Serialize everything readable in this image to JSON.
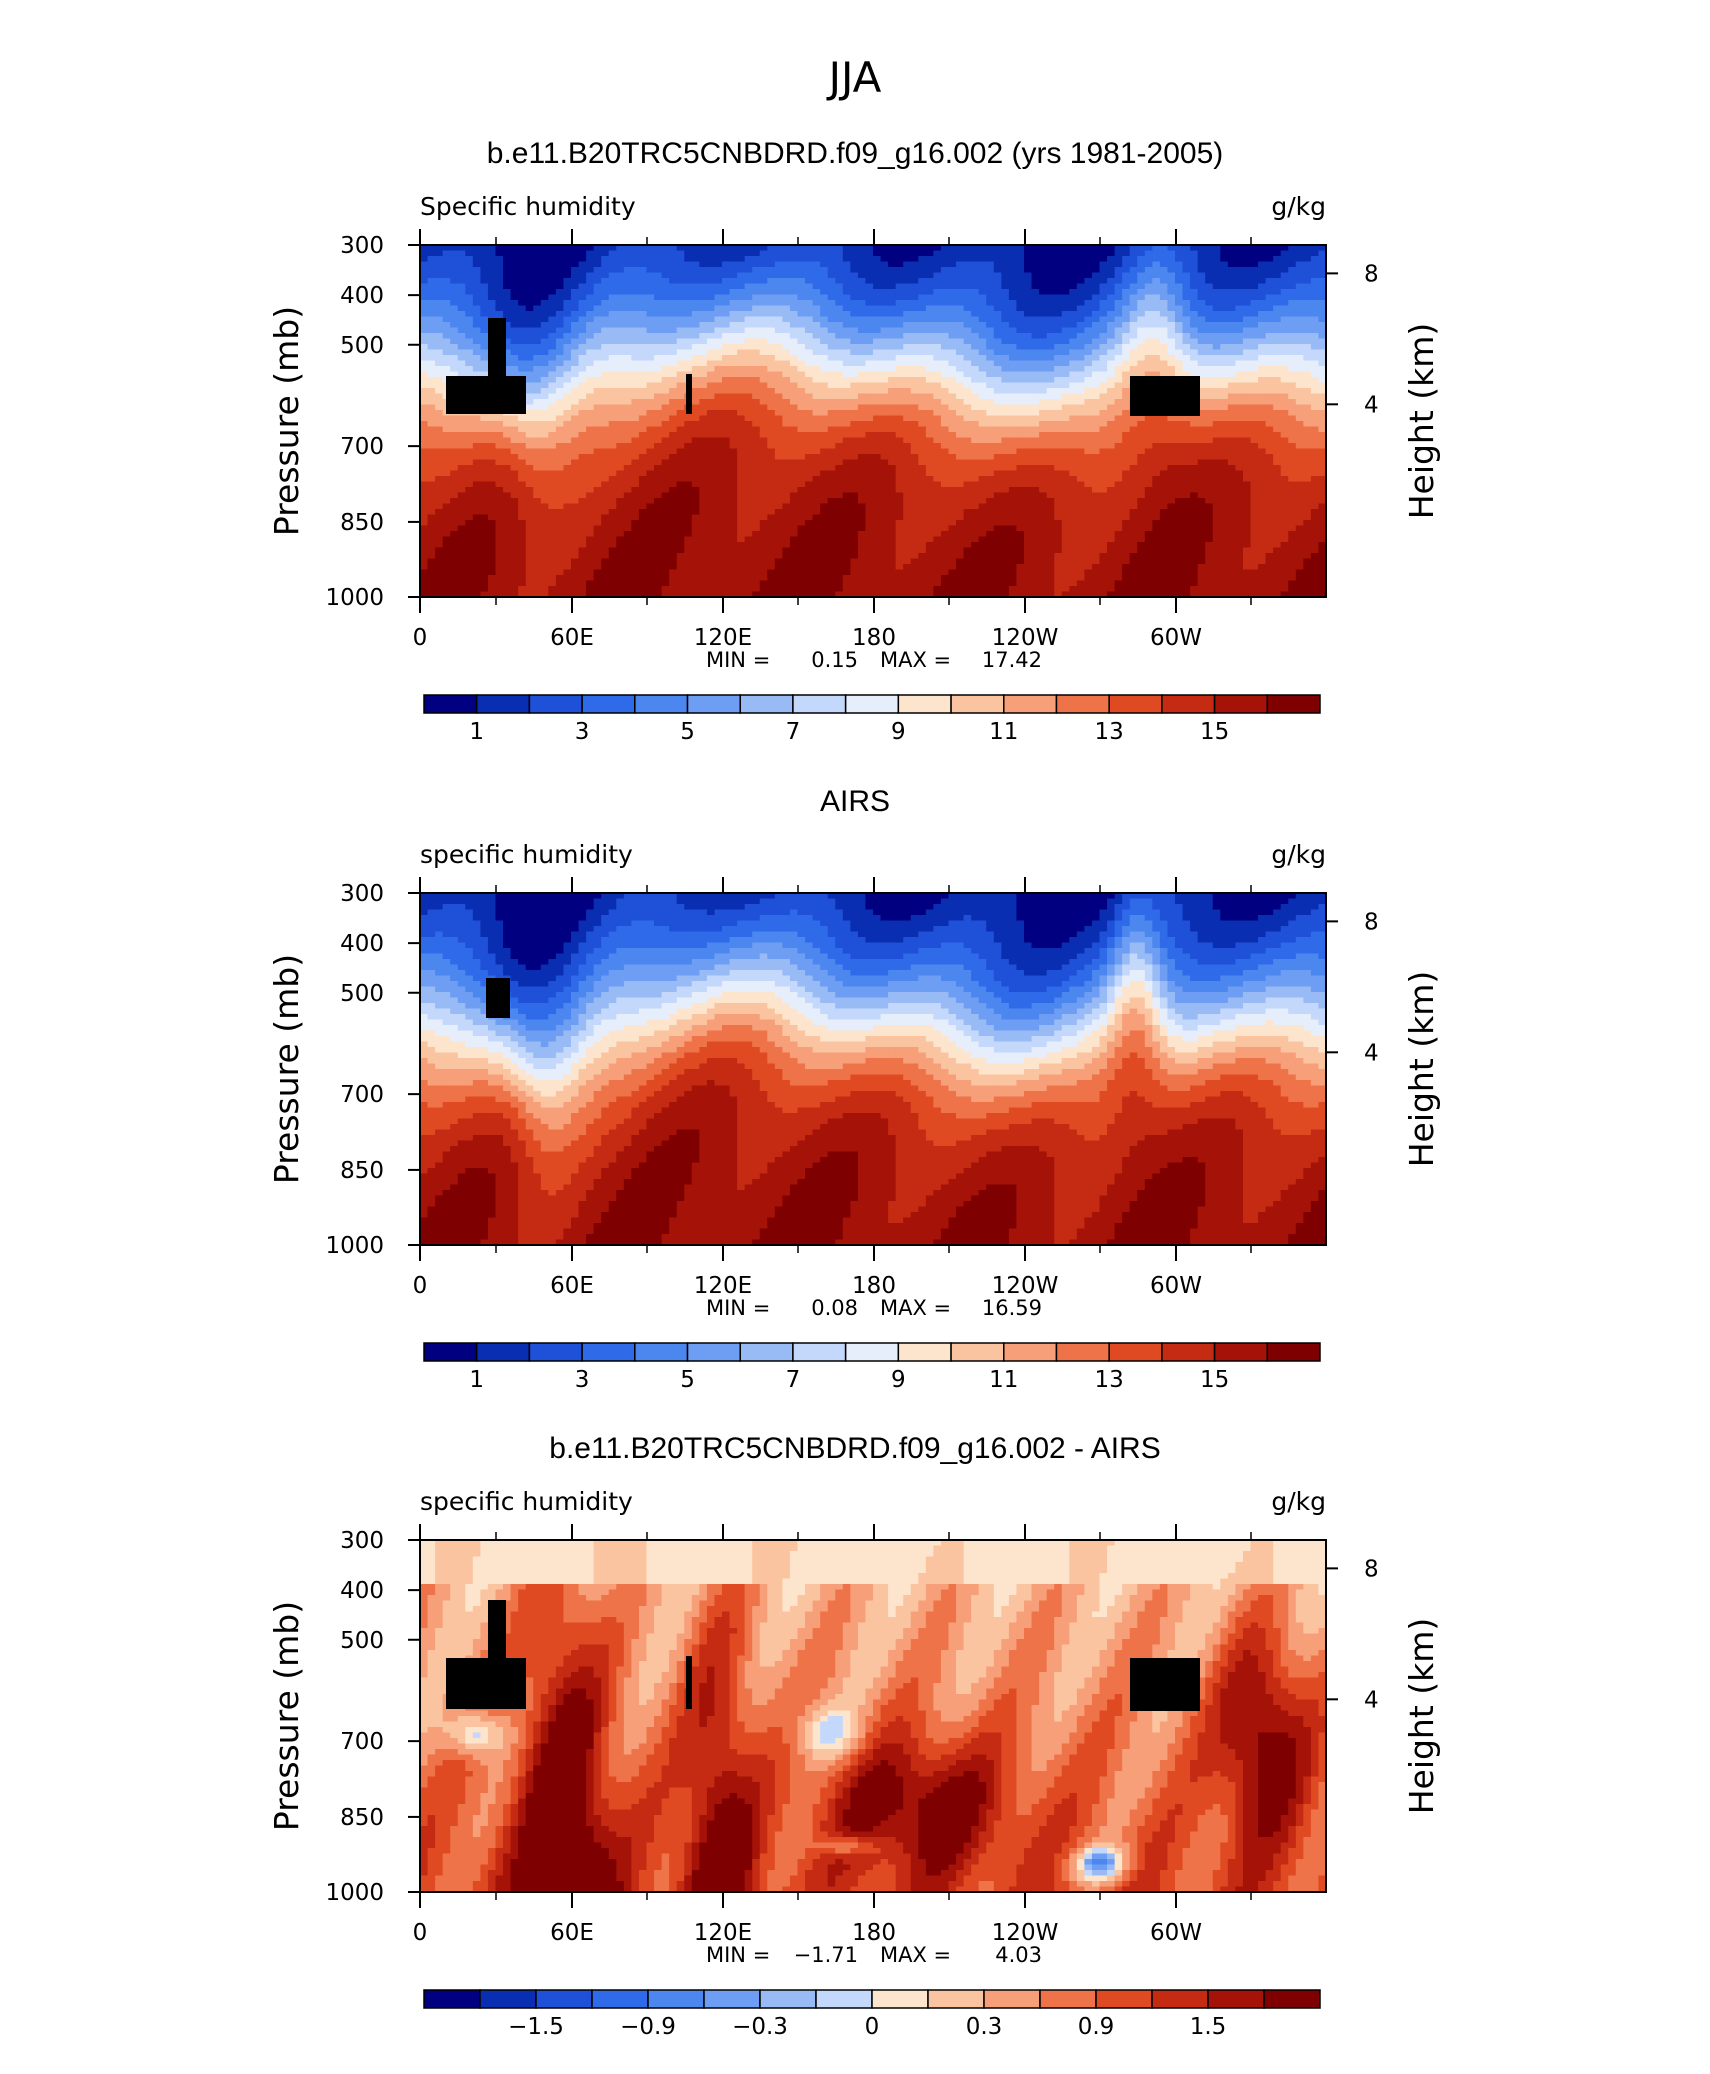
{
  "page_title": "JJA",
  "chart_data": [
    {
      "type": "heatmap",
      "title": "b.e11.B20TRC5CNBDRD.f09_g16.002 (yrs 1981-2005)",
      "left_label": "Specific humidity",
      "right_label": "g/kg",
      "ylabel": "Pressure (mb)",
      "y2label": "Height (km)",
      "x_ticks": [
        "0",
        "60E",
        "120E",
        "180",
        "120W",
        "60W"
      ],
      "y_ticks": [
        "300",
        "400",
        "500",
        "700",
        "850",
        "1000"
      ],
      "y2_ticks": [
        "8",
        "4"
      ],
      "stats": {
        "min_label": "MIN =",
        "min": "0.15",
        "max_label": "MAX =",
        "max": "17.42"
      },
      "colorbar_labels": [
        "1",
        "3",
        "5",
        "7",
        "9",
        "11",
        "13",
        "15"
      ],
      "colors": [
        "#000080",
        "#0a2eb2",
        "#1e50d8",
        "#2f6ae9",
        "#4c86ef",
        "#6e9ef3",
        "#98bbf6",
        "#c3d8fa",
        "#e6eefc",
        "#fde4cc",
        "#fbc4a0",
        "#f69f78",
        "#ef7348",
        "#e04a22",
        "#c52a12",
        "#a41208",
        "#7f0000"
      ],
      "surface_type": "mean",
      "terrain": true
    },
    {
      "type": "heatmap",
      "title": "AIRS",
      "left_label": "specific humidity",
      "right_label": "g/kg",
      "ylabel": "Pressure (mb)",
      "y2label": "Height (km)",
      "x_ticks": [
        "0",
        "60E",
        "120E",
        "180",
        "120W",
        "60W"
      ],
      "y_ticks": [
        "300",
        "400",
        "500",
        "700",
        "850",
        "1000"
      ],
      "y2_ticks": [
        "8",
        "4"
      ],
      "stats": {
        "min_label": "MIN =",
        "min": "0.08",
        "max_label": "MAX =",
        "max": "16.59"
      },
      "colorbar_labels": [
        "1",
        "3",
        "5",
        "7",
        "9",
        "11",
        "13",
        "15"
      ],
      "colors": [
        "#000080",
        "#0a2eb2",
        "#1e50d8",
        "#2f6ae9",
        "#4c86ef",
        "#6e9ef3",
        "#98bbf6",
        "#c3d8fa",
        "#e6eefc",
        "#fde4cc",
        "#fbc4a0",
        "#f69f78",
        "#ef7348",
        "#e04a22",
        "#c52a12",
        "#a41208",
        "#7f0000"
      ],
      "surface_type": "mean",
      "terrain": false
    },
    {
      "type": "heatmap",
      "title": "b.e11.B20TRC5CNBDRD.f09_g16.002 - AIRS",
      "left_label": "specific humidity",
      "right_label": "g/kg",
      "ylabel": "Pressure (mb)",
      "y2label": "Height (km)",
      "x_ticks": [
        "0",
        "60E",
        "120E",
        "180",
        "120W",
        "60W"
      ],
      "y_ticks": [
        "300",
        "400",
        "500",
        "700",
        "850",
        "1000"
      ],
      "y2_ticks": [
        "8",
        "4"
      ],
      "stats": {
        "min_label": "MIN =",
        "min": "−1.71",
        "max_label": "MAX =",
        "max": "4.03"
      },
      "colorbar_labels": [
        "−1.5",
        "−0.9",
        "−0.3",
        "0",
        "0.3",
        "0.9",
        "1.5"
      ],
      "colors": [
        "#000080",
        "#0a2eb2",
        "#1e50d8",
        "#2f6ae9",
        "#4c86ef",
        "#6e9ef3",
        "#98bbf6",
        "#c3d8fa",
        "#fde4cc",
        "#fbc4a0",
        "#f69f78",
        "#ef7348",
        "#e04a22",
        "#c52a12",
        "#a41208",
        "#7f0000"
      ],
      "surface_type": "diff",
      "terrain": true
    }
  ]
}
